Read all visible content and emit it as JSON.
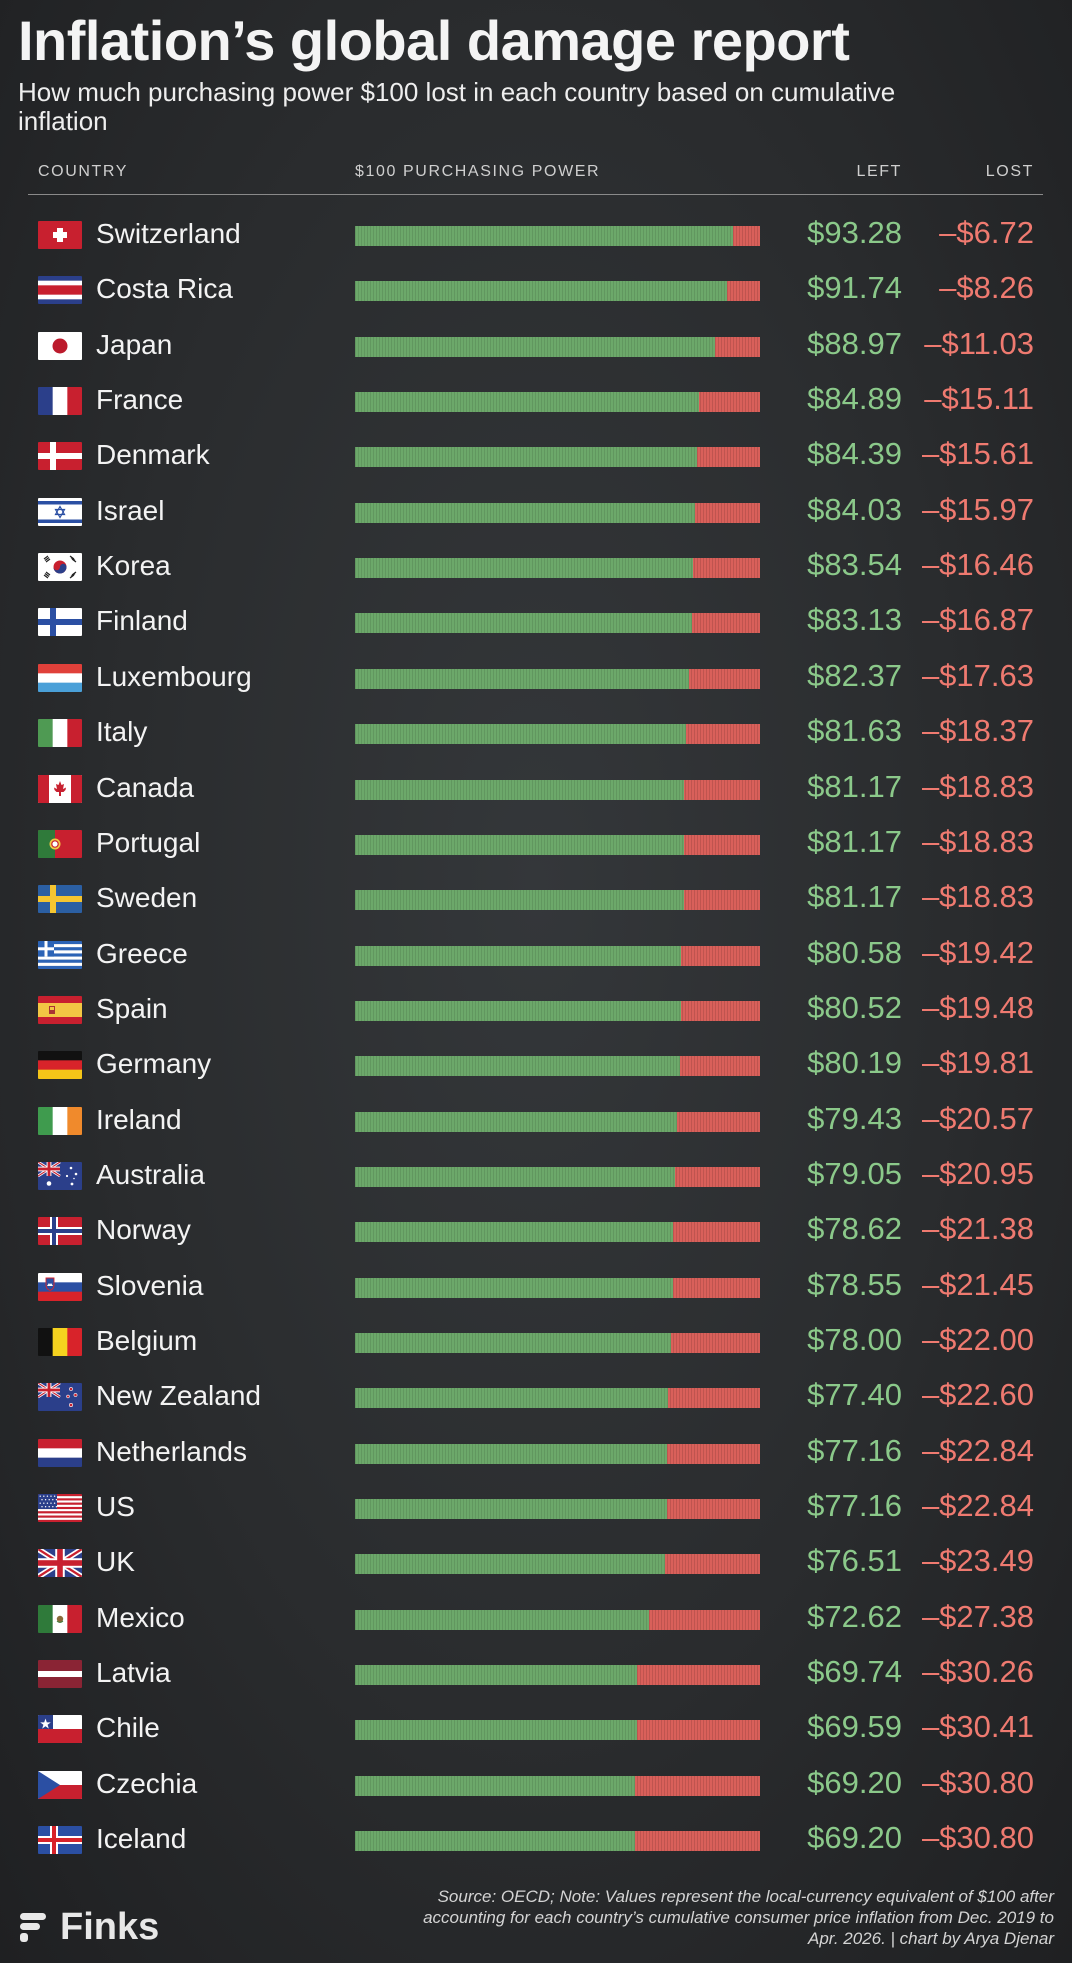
{
  "header": {
    "title": "Inflation’s global damage report",
    "subtitle": "How much purchasing power $100 lost in each country based on cumulative inflation"
  },
  "columns": {
    "country": "COUNTRY",
    "purchasing_power": "$100 PURCHASING POWER",
    "left": "LEFT",
    "lost": "LOST"
  },
  "colors": {
    "left_bar": "#6ca86a",
    "lost_bar": "#d9605a",
    "left_text": "#8bc98a",
    "lost_text": "#ef7a70",
    "background": "#2c2e30"
  },
  "chart_data": {
    "type": "bar",
    "orientation": "horizontal-stacked",
    "total": 100,
    "categories": [
      "Switzerland",
      "Costa Rica",
      "Japan",
      "France",
      "Denmark",
      "Israel",
      "Korea",
      "Finland",
      "Luxembourg",
      "Italy",
      "Canada",
      "Portugal",
      "Sweden",
      "Greece",
      "Spain",
      "Germany",
      "Ireland",
      "Australia",
      "Norway",
      "Slovenia",
      "Belgium",
      "New Zealand",
      "Netherlands",
      "US",
      "UK",
      "Mexico",
      "Latvia",
      "Chile",
      "Czechia",
      "Iceland"
    ],
    "series": [
      {
        "name": "LEFT",
        "values": [
          93.28,
          91.74,
          88.97,
          84.89,
          84.39,
          84.03,
          83.54,
          83.13,
          82.37,
          81.63,
          81.17,
          81.17,
          81.17,
          80.58,
          80.52,
          80.19,
          79.43,
          79.05,
          78.62,
          78.55,
          78.0,
          77.4,
          77.16,
          77.16,
          76.51,
          72.62,
          69.74,
          69.59,
          69.2,
          69.2
        ]
      },
      {
        "name": "LOST",
        "values": [
          6.72,
          8.26,
          11.03,
          15.11,
          15.61,
          15.97,
          16.46,
          16.87,
          17.63,
          18.37,
          18.83,
          18.83,
          18.83,
          19.42,
          19.48,
          19.81,
          20.57,
          20.95,
          21.38,
          21.45,
          22.0,
          22.6,
          22.84,
          22.84,
          23.49,
          27.38,
          30.26,
          30.41,
          30.8,
          30.8
        ]
      }
    ],
    "left_labels": [
      "$93.28",
      "$91.74",
      "$88.97",
      "$84.89",
      "$84.39",
      "$84.03",
      "$83.54",
      "$83.13",
      "$82.37",
      "$81.63",
      "$81.17",
      "$81.17",
      "$81.17",
      "$80.58",
      "$80.52",
      "$80.19",
      "$79.43",
      "$79.05",
      "$78.62",
      "$78.55",
      "$78.00",
      "$77.40",
      "$77.16",
      "$77.16",
      "$76.51",
      "$72.62",
      "$69.74",
      "$69.59",
      "$69.20",
      "$69.20"
    ],
    "lost_labels": [
      "–$6.72",
      "–$8.26",
      "–$11.03",
      "–$15.11",
      "–$15.61",
      "–$15.97",
      "–$16.46",
      "–$16.87",
      "–$17.63",
      "–$18.37",
      "–$18.83",
      "–$18.83",
      "–$18.83",
      "–$19.42",
      "–$19.48",
      "–$19.81",
      "–$20.57",
      "–$20.95",
      "–$21.38",
      "–$21.45",
      "–$22.00",
      "–$22.60",
      "–$22.84",
      "–$22.84",
      "–$23.49",
      "–$27.38",
      "–$30.26",
      "–$30.41",
      "–$30.80",
      "–$30.80"
    ],
    "flags": [
      "switzerland",
      "costa-rica",
      "japan",
      "france",
      "denmark",
      "israel",
      "korea",
      "finland",
      "luxembourg",
      "italy",
      "canada",
      "portugal",
      "sweden",
      "greece",
      "spain",
      "germany",
      "ireland",
      "australia",
      "norway",
      "slovenia",
      "belgium",
      "new-zealand",
      "netherlands",
      "us",
      "uk",
      "mexico",
      "latvia",
      "chile",
      "czechia",
      "iceland"
    ],
    "grid": false,
    "legend": "none"
  },
  "footer": {
    "logo_text": "Finks",
    "source": "Source: OECD; Note: Values represent the local-currency equivalent of $100 after accounting for each country’s cumulative consumer price inflation from Dec. 2019 to Apr. 2026. | chart by Arya Djenar"
  }
}
